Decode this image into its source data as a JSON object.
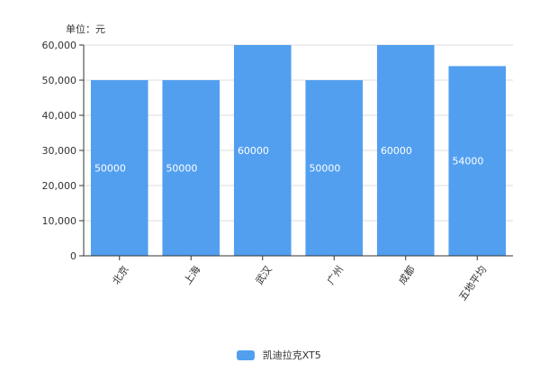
{
  "chart_data": {
    "type": "bar",
    "unit_label": "单位：元",
    "categories": [
      "北京",
      "上海",
      "武汉",
      "广州",
      "成都",
      "五地平均"
    ],
    "series": [
      {
        "name": "凯迪拉克XT5",
        "values": [
          50000,
          50000,
          60000,
          50000,
          60000,
          54000
        ]
      }
    ],
    "ylim": [
      0,
      60000
    ],
    "yticks": [
      "0",
      "10,000",
      "20,000",
      "30,000",
      "40,000",
      "50,000",
      "60,000"
    ],
    "grid": true,
    "legend_position": "bottom",
    "colors": {
      "bar": "#529ff0",
      "grid": "#dddddd",
      "axis": "#333333"
    }
  }
}
